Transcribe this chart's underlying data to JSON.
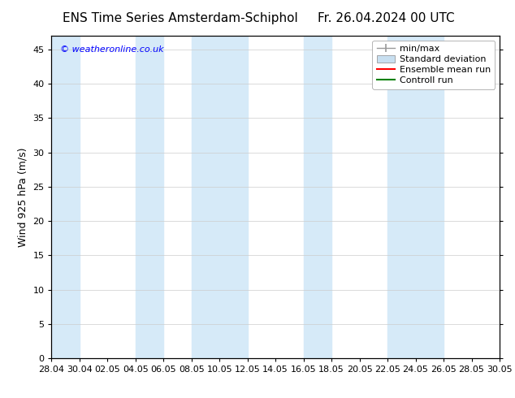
{
  "title_left": "ENS Time Series Amsterdam-Schiphol",
  "title_right": "Fr. 26.04.2024 00 UTC",
  "ylabel": "Wind 925 hPa (m/s)",
  "watermark": "© weatheronline.co.uk",
  "ylim": [
    0,
    47
  ],
  "yticks": [
    0,
    5,
    10,
    15,
    20,
    25,
    30,
    35,
    40,
    45
  ],
  "xtick_labels": [
    "28.04",
    "30.04",
    "02.05",
    "04.05",
    "06.05",
    "08.05",
    "10.05",
    "12.05",
    "14.05",
    "16.05",
    "18.05",
    "20.05",
    "22.05",
    "24.05",
    "26.05",
    "28.05",
    "30.05"
  ],
  "bg_color": "#ffffff",
  "plot_bg_color": "#ffffff",
  "band_color": "#d6eaf8",
  "band_alpha": 1.0,
  "shaded_band_indices": [
    0,
    2,
    4,
    6,
    8,
    9,
    12,
    13
  ],
  "legend_items": [
    {
      "label": "min/max",
      "color": "#999999",
      "lw": 1.0,
      "style": "minmax"
    },
    {
      "label": "Standard deviation",
      "color": "#c8dff0",
      "lw": 8,
      "style": "band"
    },
    {
      "label": "Ensemble mean run",
      "color": "#ff0000",
      "lw": 1.5,
      "style": "line"
    },
    {
      "label": "Controll run",
      "color": "#008000",
      "lw": 1.5,
      "style": "line"
    }
  ],
  "fontsize_title": 11,
  "fontsize_labels": 9,
  "fontsize_ticks": 8,
  "fontsize_watermark": 8,
  "fontsize_legend": 8
}
